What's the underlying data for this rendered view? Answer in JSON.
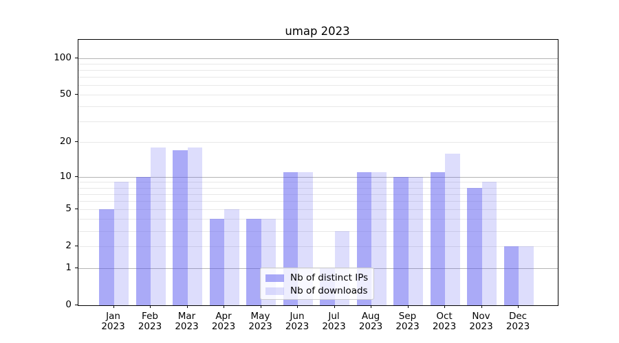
{
  "header": {
    "title": "umap 2023"
  },
  "chart_data": {
    "type": "bar",
    "title": "umap 2023",
    "categories": [
      "Jan 2023",
      "Feb 2023",
      "Mar 2023",
      "Apr 2023",
      "May 2023",
      "Jun 2023",
      "Jul 2023",
      "Aug 2023",
      "Sep 2023",
      "Oct 2023",
      "Nov 2023",
      "Dec 2023"
    ],
    "series": [
      {
        "name": "Nb of distinct IPs",
        "values": [
          5,
          10,
          17,
          4,
          4,
          11,
          1,
          11,
          10,
          11,
          8,
          2
        ],
        "base_color": "#5555f0",
        "opacity": 0.5,
        "rendered_color": "#aaaaf7"
      },
      {
        "name": "Nb of downloads",
        "values": [
          9,
          18,
          18,
          5,
          4,
          11,
          3,
          11,
          10,
          16,
          9,
          2
        ],
        "base_color": "#5555f0",
        "opacity": 0.2,
        "rendered_color": "#ddddfc"
      }
    ],
    "xlabel": "",
    "ylabel": "",
    "yscale": "log1p",
    "ylim": [
      0,
      118
    ],
    "y_tick_labels": [
      100,
      50,
      20,
      10,
      5,
      2,
      1,
      0
    ],
    "y_major_gridlines": [
      1,
      10,
      100
    ],
    "y_minor_gridlines": [
      2,
      3,
      4,
      5,
      6,
      7,
      8,
      9,
      20,
      30,
      40,
      50,
      60,
      70,
      80,
      90
    ],
    "grid": true,
    "legend_position": "lower center"
  },
  "colors": {
    "major_grid": "#b3b3b3",
    "minor_grid": "#e8e8e8",
    "spine": "#000000",
    "legend_border": "#cccccc"
  }
}
